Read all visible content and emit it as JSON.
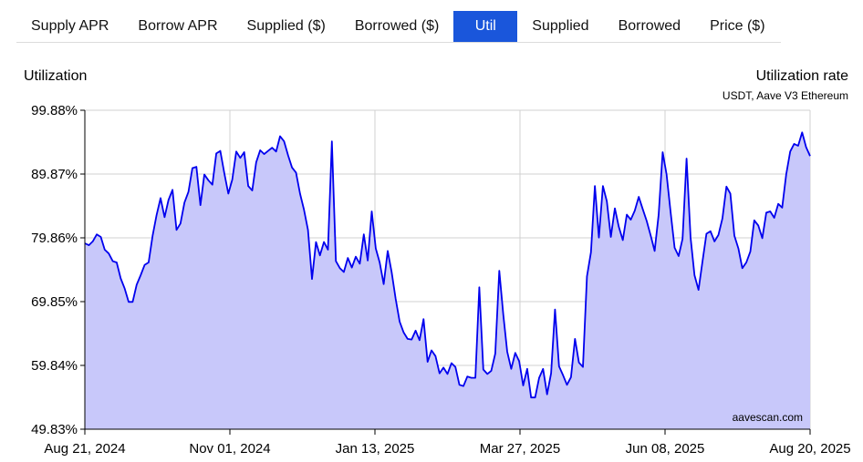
{
  "tabs": [
    {
      "label": "Supply APR",
      "active": false
    },
    {
      "label": "Borrow APR",
      "active": false
    },
    {
      "label": "Supplied ($)",
      "active": false
    },
    {
      "label": "Borrowed ($)",
      "active": false
    },
    {
      "label": "Util",
      "active": true
    },
    {
      "label": "Supplied",
      "active": false
    },
    {
      "label": "Borrowed",
      "active": false
    },
    {
      "label": "Price ($)",
      "active": false
    }
  ],
  "colors": {
    "accent": "#1a56db",
    "line": "#0000ee",
    "fill": "#c8c8fa",
    "grid": "#d0d0d0"
  },
  "chart_data": {
    "type": "area",
    "title": "Utilization rate",
    "subtitle": "USDT, Aave V3 Ethereum",
    "ylabel": "Utilization",
    "credit": "aavescan.com",
    "ylim": [
      49.83,
      99.88
    ],
    "y_ticks": [
      "99.88%",
      "89.87%",
      "79.86%",
      "69.85%",
      "59.84%",
      "49.83%"
    ],
    "x_ticks": [
      "Aug 21, 2024",
      "Nov 01, 2024",
      "Jan 13, 2025",
      "Mar 27, 2025",
      "Jun 08, 2025",
      "Aug 20, 2025"
    ],
    "x_range": [
      "2024-08-21",
      "2025-08-20"
    ],
    "grid": true,
    "series": [
      {
        "points": [
          [
            "2024-08-21",
            79.0
          ],
          [
            "2024-08-23",
            78.7
          ],
          [
            "2024-08-25",
            79.3
          ],
          [
            "2024-08-27",
            80.4
          ],
          [
            "2024-08-29",
            80.0
          ],
          [
            "2024-08-31",
            78.0
          ],
          [
            "2024-09-02",
            77.4
          ],
          [
            "2024-09-04",
            76.2
          ],
          [
            "2024-09-06",
            76.0
          ],
          [
            "2024-09-08",
            73.5
          ],
          [
            "2024-09-10",
            71.9
          ],
          [
            "2024-09-12",
            69.8
          ],
          [
            "2024-09-14",
            69.8
          ],
          [
            "2024-09-16",
            72.5
          ],
          [
            "2024-09-18",
            74.0
          ],
          [
            "2024-09-20",
            75.6
          ],
          [
            "2024-09-22",
            76.0
          ],
          [
            "2024-09-24",
            80.2
          ],
          [
            "2024-09-26",
            83.4
          ],
          [
            "2024-09-28",
            86.1
          ],
          [
            "2024-09-30",
            83.1
          ],
          [
            "2024-10-02",
            85.8
          ],
          [
            "2024-10-04",
            87.4
          ],
          [
            "2024-10-06",
            81.1
          ],
          [
            "2024-10-08",
            82.1
          ],
          [
            "2024-10-10",
            85.4
          ],
          [
            "2024-10-12",
            87.1
          ],
          [
            "2024-10-14",
            90.8
          ],
          [
            "2024-10-16",
            91.0
          ],
          [
            "2024-10-18",
            85.0
          ],
          [
            "2024-10-20",
            89.8
          ],
          [
            "2024-10-22",
            88.9
          ],
          [
            "2024-10-24",
            88.2
          ],
          [
            "2024-10-26",
            93.1
          ],
          [
            "2024-10-28",
            93.5
          ],
          [
            "2024-10-30",
            90.0
          ],
          [
            "2024-11-01",
            86.8
          ],
          [
            "2024-11-03",
            89.0
          ],
          [
            "2024-11-05",
            93.4
          ],
          [
            "2024-11-07",
            92.4
          ],
          [
            "2024-11-09",
            93.3
          ],
          [
            "2024-11-11",
            88.0
          ],
          [
            "2024-11-13",
            87.3
          ],
          [
            "2024-11-15",
            91.7
          ],
          [
            "2024-11-17",
            93.6
          ],
          [
            "2024-11-19",
            93.0
          ],
          [
            "2024-11-21",
            93.5
          ],
          [
            "2024-11-23",
            94.0
          ],
          [
            "2024-11-25",
            93.4
          ],
          [
            "2024-11-27",
            95.8
          ],
          [
            "2024-11-29",
            95.0
          ],
          [
            "2024-12-01",
            92.8
          ],
          [
            "2024-12-03",
            90.9
          ],
          [
            "2024-12-05",
            90.1
          ],
          [
            "2024-12-07",
            86.8
          ],
          [
            "2024-12-09",
            84.3
          ],
          [
            "2024-12-11",
            81.1
          ],
          [
            "2024-12-13",
            73.4
          ],
          [
            "2024-12-15",
            79.2
          ],
          [
            "2024-12-17",
            77.1
          ],
          [
            "2024-12-19",
            79.2
          ],
          [
            "2024-12-21",
            78.0
          ],
          [
            "2024-12-23",
            95.0
          ],
          [
            "2024-12-25",
            76.2
          ],
          [
            "2024-12-27",
            75.1
          ],
          [
            "2024-12-29",
            74.5
          ],
          [
            "2024-12-31",
            76.7
          ],
          [
            "2025-01-02",
            75.2
          ],
          [
            "2025-01-04",
            76.9
          ],
          [
            "2025-01-06",
            75.8
          ],
          [
            "2025-01-08",
            80.4
          ],
          [
            "2025-01-10",
            76.3
          ],
          [
            "2025-01-12",
            84.0
          ],
          [
            "2025-01-14",
            78.2
          ],
          [
            "2025-01-16",
            76.0
          ],
          [
            "2025-01-18",
            72.6
          ],
          [
            "2025-01-20",
            77.8
          ],
          [
            "2025-01-22",
            74.5
          ],
          [
            "2025-01-24",
            70.3
          ],
          [
            "2025-01-26",
            66.7
          ],
          [
            "2025-01-28",
            65.0
          ],
          [
            "2025-01-30",
            64.0
          ],
          [
            "2025-02-01",
            63.9
          ],
          [
            "2025-02-03",
            65.3
          ],
          [
            "2025-02-05",
            63.8
          ],
          [
            "2025-02-07",
            67.1
          ],
          [
            "2025-02-09",
            60.4
          ],
          [
            "2025-02-11",
            62.2
          ],
          [
            "2025-02-13",
            61.3
          ],
          [
            "2025-02-15",
            58.6
          ],
          [
            "2025-02-17",
            59.5
          ],
          [
            "2025-02-19",
            58.5
          ],
          [
            "2025-02-21",
            60.2
          ],
          [
            "2025-02-23",
            59.6
          ],
          [
            "2025-02-25",
            56.8
          ],
          [
            "2025-02-27",
            56.6
          ],
          [
            "2025-03-01",
            58.1
          ],
          [
            "2025-03-03",
            57.9
          ],
          [
            "2025-03-05",
            57.9
          ],
          [
            "2025-03-07",
            72.1
          ],
          [
            "2025-03-09",
            59.2
          ],
          [
            "2025-03-11",
            58.5
          ],
          [
            "2025-03-13",
            59.0
          ],
          [
            "2025-03-15",
            61.7
          ],
          [
            "2025-03-17",
            74.7
          ],
          [
            "2025-03-19",
            67.8
          ],
          [
            "2025-03-21",
            62.0
          ],
          [
            "2025-03-23",
            59.3
          ],
          [
            "2025-03-25",
            61.8
          ],
          [
            "2025-03-27",
            60.5
          ],
          [
            "2025-03-29",
            56.7
          ],
          [
            "2025-03-31",
            59.3
          ],
          [
            "2025-04-02",
            54.8
          ],
          [
            "2025-04-04",
            54.8
          ],
          [
            "2025-04-06",
            57.9
          ],
          [
            "2025-04-08",
            59.3
          ],
          [
            "2025-04-10",
            55.3
          ],
          [
            "2025-04-12",
            58.6
          ],
          [
            "2025-04-14",
            68.6
          ],
          [
            "2025-04-16",
            59.7
          ],
          [
            "2025-04-18",
            58.3
          ],
          [
            "2025-04-20",
            56.8
          ],
          [
            "2025-04-22",
            58.0
          ],
          [
            "2025-04-24",
            64.0
          ],
          [
            "2025-04-26",
            60.3
          ],
          [
            "2025-04-28",
            59.6
          ],
          [
            "2025-04-30",
            73.8
          ],
          [
            "2025-05-02",
            77.6
          ],
          [
            "2025-05-04",
            88.0
          ],
          [
            "2025-05-06",
            79.9
          ],
          [
            "2025-05-08",
            88.0
          ],
          [
            "2025-05-10",
            85.6
          ],
          [
            "2025-05-12",
            80.0
          ],
          [
            "2025-05-14",
            84.5
          ],
          [
            "2025-05-16",
            81.6
          ],
          [
            "2025-05-18",
            79.5
          ],
          [
            "2025-05-20",
            83.5
          ],
          [
            "2025-05-22",
            82.7
          ],
          [
            "2025-05-24",
            84.1
          ],
          [
            "2025-05-26",
            86.3
          ],
          [
            "2025-05-28",
            84.4
          ],
          [
            "2025-05-30",
            82.5
          ],
          [
            "2025-06-01",
            80.2
          ],
          [
            "2025-06-03",
            77.8
          ],
          [
            "2025-06-05",
            83.5
          ],
          [
            "2025-06-07",
            93.3
          ],
          [
            "2025-06-09",
            89.8
          ],
          [
            "2025-06-11",
            83.9
          ],
          [
            "2025-06-13",
            78.3
          ],
          [
            "2025-06-15",
            77.0
          ],
          [
            "2025-06-17",
            79.7
          ],
          [
            "2025-06-19",
            92.3
          ],
          [
            "2025-06-21",
            79.9
          ],
          [
            "2025-06-23",
            74.0
          ],
          [
            "2025-06-25",
            71.7
          ],
          [
            "2025-06-27",
            76.2
          ],
          [
            "2025-06-29",
            80.5
          ],
          [
            "2025-07-01",
            80.9
          ],
          [
            "2025-07-03",
            79.3
          ],
          [
            "2025-07-05",
            80.3
          ],
          [
            "2025-07-07",
            82.9
          ],
          [
            "2025-07-09",
            87.9
          ],
          [
            "2025-07-11",
            86.8
          ],
          [
            "2025-07-13",
            80.2
          ],
          [
            "2025-07-15",
            78.2
          ],
          [
            "2025-07-17",
            75.1
          ],
          [
            "2025-07-19",
            76.0
          ],
          [
            "2025-07-21",
            77.7
          ],
          [
            "2025-07-23",
            82.6
          ],
          [
            "2025-07-25",
            81.8
          ],
          [
            "2025-07-27",
            79.8
          ],
          [
            "2025-07-29",
            83.8
          ],
          [
            "2025-07-31",
            84.0
          ],
          [
            "2025-08-02",
            83.0
          ],
          [
            "2025-08-04",
            85.2
          ],
          [
            "2025-08-06",
            84.6
          ],
          [
            "2025-08-08",
            89.8
          ],
          [
            "2025-08-10",
            93.4
          ],
          [
            "2025-08-12",
            94.6
          ],
          [
            "2025-08-14",
            94.3
          ],
          [
            "2025-08-16",
            96.4
          ],
          [
            "2025-08-18",
            94.1
          ],
          [
            "2025-08-20",
            92.7
          ]
        ]
      }
    ]
  }
}
